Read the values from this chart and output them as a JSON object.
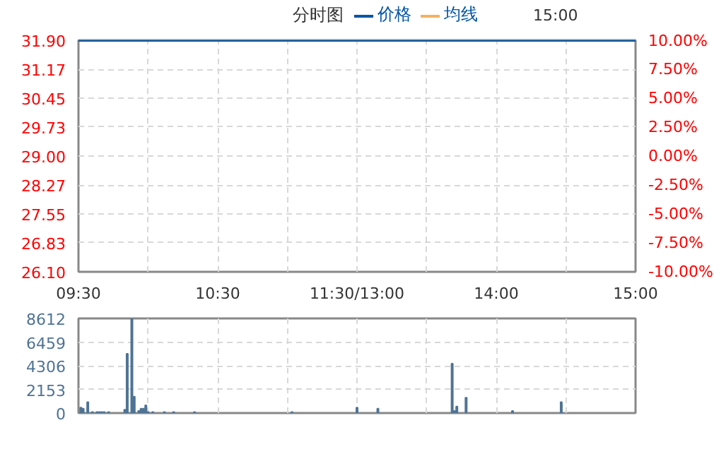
{
  "chart_data": [
    {
      "type": "line",
      "title": "分时图",
      "annotations": [
        "15:00"
      ],
      "legend": "top",
      "grid": true,
      "tick_labels": true,
      "categories": [
        "09:30",
        null,
        null,
        null,
        null,
        null,
        null,
        null,
        null,
        null,
        null,
        null,
        null,
        null,
        null,
        null,
        null,
        null,
        null,
        null,
        null,
        null,
        null,
        null,
        null,
        null,
        null,
        null,
        null,
        null,
        null,
        null,
        null,
        null,
        null,
        null,
        null,
        null,
        null,
        null,
        null,
        null,
        null,
        null,
        null,
        null,
        null,
        null,
        null,
        null,
        null,
        null,
        null,
        null,
        null,
        null,
        null,
        null,
        null,
        null,
        "10:30",
        null,
        null,
        null,
        null,
        null,
        null,
        null,
        null,
        null,
        null,
        null,
        null,
        null,
        null,
        null,
        null,
        null,
        null,
        null,
        null,
        null,
        null,
        null,
        null,
        null,
        null,
        null,
        null,
        null,
        null,
        null,
        null,
        null,
        null,
        null,
        null,
        null,
        null,
        null,
        null,
        null,
        null,
        null,
        null,
        null,
        null,
        null,
        null,
        null,
        null,
        null,
        null,
        null,
        null,
        null,
        null,
        null,
        null,
        null,
        "11:30/13:00",
        null,
        null,
        null,
        null,
        null,
        null,
        null,
        null,
        null,
        null,
        null,
        null,
        null,
        null,
        null,
        null,
        null,
        null,
        null,
        null,
        null,
        null,
        null,
        null,
        null,
        null,
        null,
        null,
        null,
        null,
        null,
        null,
        null,
        null,
        null,
        null,
        null,
        null,
        null,
        null,
        null,
        null,
        null,
        null,
        null,
        null,
        null,
        null,
        null,
        null,
        null,
        null,
        null,
        null,
        null,
        null,
        null,
        null,
        null,
        "14:00",
        null,
        null,
        null,
        null,
        null,
        null,
        null,
        null,
        null,
        null,
        null,
        null,
        null,
        null,
        null,
        null,
        null,
        null,
        null,
        null,
        null,
        null,
        null,
        null,
        null,
        null,
        null,
        null,
        null,
        null,
        null,
        null,
        null,
        null,
        null,
        null,
        null,
        null,
        null,
        null,
        null,
        null,
        null,
        null,
        null,
        null,
        null,
        null,
        null,
        null,
        null,
        null,
        null,
        null,
        null,
        null,
        null,
        null,
        null,
        "15:00"
      ],
      "ylim": [
        26.1,
        31.9
      ],
      "yticks": [
        {
          "value": 26.1,
          "label": "26.10"
        },
        26.83,
        27.55,
        28.27,
        {
          "value": 29,
          "label": "29.00"
        },
        29.73,
        30.45,
        31.17,
        {
          "value": 31.9,
          "label": "31.90"
        }
      ],
      "y2lim": [
        -10,
        10
      ],
      "y2ticks": [
        {
          "value": -10,
          "label": "-10.00%"
        },
        {
          "value": -7.5,
          "label": "-7.50%"
        },
        {
          "value": -5,
          "label": "-5.00%"
        },
        {
          "value": -2.5,
          "label": "-2.50%"
        },
        {
          "value": 0,
          "label": "0.00%"
        },
        {
          "value": 2.5,
          "label": "2.50%"
        },
        {
          "value": 5,
          "label": "5.00%"
        },
        {
          "value": 7.5,
          "label": "7.50%"
        },
        {
          "value": 10,
          "label": "10.00%"
        }
      ],
      "series": [
        {
          "name": "价格",
          "color": "#0055a5",
          "values": [
            31.9,
            31.9,
            31.9,
            31.9,
            31.9,
            31.9,
            31.9,
            31.9,
            31.9,
            31.9,
            31.9,
            31.9,
            31.9,
            31.9,
            31.9,
            31.9,
            31.9,
            31.9,
            31.9,
            31.9,
            31.9,
            31.9,
            31.9,
            31.9,
            31.9,
            31.9,
            31.9,
            31.9,
            31.9,
            31.9,
            31.9,
            31.9,
            31.9,
            31.9,
            31.9,
            31.9,
            31.9,
            31.9,
            31.9,
            31.9,
            31.9,
            31.9,
            31.9,
            31.9,
            31.9,
            31.9,
            31.9,
            31.9,
            31.9,
            31.9,
            31.9,
            31.9,
            31.9,
            31.9,
            31.9,
            31.9,
            31.9,
            31.9,
            31.9,
            31.9,
            31.9,
            31.9,
            31.9,
            31.9,
            31.9,
            31.9,
            31.9,
            31.9,
            31.9,
            31.9,
            31.9,
            31.9,
            31.9,
            31.9,
            31.9,
            31.9,
            31.9,
            31.9,
            31.9,
            31.9,
            31.9,
            31.9,
            31.9,
            31.9,
            31.9,
            31.9,
            31.9,
            31.9,
            31.9,
            31.9,
            31.9,
            31.9,
            31.9,
            31.9,
            31.9,
            31.9,
            31.9,
            31.9,
            31.9,
            31.9,
            31.9,
            31.9,
            31.9,
            31.9,
            31.9,
            31.9,
            31.9,
            31.9,
            31.9,
            31.9,
            31.9,
            31.9,
            31.9,
            31.9,
            31.9,
            31.9,
            31.9,
            31.9,
            31.9,
            31.9,
            31.9,
            31.9,
            31.9,
            31.9,
            31.9,
            31.9,
            31.9,
            31.9,
            31.9,
            31.9,
            31.9,
            31.9,
            31.9,
            31.9,
            31.9,
            31.9,
            31.9,
            31.9,
            31.9,
            31.9,
            31.9,
            31.9,
            31.9,
            31.9,
            31.9,
            31.9,
            31.9,
            31.9,
            31.9,
            31.9,
            31.9,
            31.9,
            31.9,
            31.9,
            31.9,
            31.9,
            31.9,
            31.9,
            31.9,
            31.9,
            31.9,
            31.9,
            31.9,
            31.9,
            31.9,
            31.9,
            31.9,
            31.9,
            31.9,
            31.9,
            31.9,
            31.9,
            31.9,
            31.9,
            31.9,
            31.9,
            31.9,
            31.9,
            31.9,
            31.9,
            31.9,
            31.9,
            31.9,
            31.9,
            31.9,
            31.9,
            31.9,
            31.9,
            31.9,
            31.9,
            31.9,
            31.9,
            31.9,
            31.9,
            31.9,
            31.9,
            31.9,
            31.9,
            31.9,
            31.9,
            31.9,
            31.9,
            31.9,
            31.9,
            31.9,
            31.9,
            31.9,
            31.9,
            31.9,
            31.9,
            31.9,
            31.9,
            31.9,
            31.9,
            31.9,
            31.9,
            31.9,
            31.9,
            31.9,
            31.9,
            31.9,
            31.9,
            31.9,
            31.9,
            31.9,
            31.9,
            31.9,
            31.9,
            31.9,
            31.9,
            31.9,
            31.9,
            31.9,
            31.9,
            31.9,
            31.9,
            31.9,
            31.9,
            31.9,
            31.9,
            31.9
          ]
        },
        {
          "name": "均线",
          "color": "#f5b060",
          "values": [
            null,
            null,
            null,
            null,
            null,
            null,
            null,
            null,
            null,
            null,
            null,
            null,
            null,
            null,
            null,
            null,
            null,
            null,
            null,
            null,
            null,
            null,
            null,
            null,
            null,
            null,
            null,
            null,
            null,
            null,
            null,
            null,
            null,
            null,
            null,
            null,
            null,
            null,
            null,
            null,
            null,
            null,
            null,
            null,
            null,
            null,
            null,
            null,
            null,
            null,
            null,
            null,
            null,
            null,
            null,
            null,
            null,
            null,
            null,
            null,
            null,
            null,
            null,
            null,
            null,
            null,
            null,
            null,
            null,
            null,
            null,
            null,
            null,
            null,
            null,
            null,
            null,
            null,
            null,
            null,
            null,
            null,
            null,
            null,
            null,
            null,
            null,
            null,
            null,
            null,
            null,
            null,
            null,
            null,
            null,
            null,
            null,
            null,
            null,
            null,
            null,
            null,
            null,
            null,
            null,
            null,
            null,
            null,
            null,
            null,
            null,
            null,
            null,
            null,
            null,
            null,
            null,
            null,
            null,
            null,
            null,
            null,
            null,
            null,
            null,
            null,
            null,
            null,
            null,
            null,
            null,
            null,
            null,
            null,
            null,
            null,
            null,
            null,
            null,
            null,
            null,
            null,
            null,
            null,
            null,
            null,
            null,
            null,
            null,
            null,
            null,
            null,
            null,
            null,
            null,
            null,
            null,
            null,
            null,
            null,
            null,
            null,
            null,
            null,
            null,
            null,
            null,
            null,
            null,
            null,
            null,
            null,
            null,
            null,
            null,
            null,
            null,
            null,
            null,
            null,
            null,
            null,
            null,
            null,
            null,
            null,
            null,
            null,
            null,
            null,
            null,
            null,
            null,
            null,
            null,
            null,
            null,
            null,
            null,
            null,
            null,
            null,
            null,
            null,
            null,
            null,
            null,
            null,
            null,
            null,
            null,
            null,
            null,
            null,
            null,
            null,
            null,
            null,
            null,
            null,
            null,
            null,
            null,
            null,
            null,
            null,
            null,
            null,
            null,
            null,
            null,
            null,
            null,
            null,
            null,
            null,
            null,
            null,
            null,
            null,
            null
          ]
        }
      ]
    },
    {
      "type": "bar",
      "color": "#4f7394",
      "grid": true,
      "tick_labels": "y",
      "categories": [
        null,
        null,
        null,
        null,
        null,
        null,
        null,
        null,
        null,
        null,
        null,
        null,
        null,
        null,
        null,
        null,
        null,
        null,
        null,
        null,
        null,
        null,
        null,
        null,
        null,
        null,
        null,
        null,
        null,
        null,
        null,
        null,
        null,
        null,
        null,
        null,
        null,
        null,
        null,
        null,
        null,
        null,
        null,
        null,
        null,
        null,
        null,
        null,
        null,
        null,
        null,
        null,
        null,
        null,
        null,
        null,
        null,
        null,
        null,
        null,
        null,
        null,
        null,
        null,
        null,
        null,
        null,
        null,
        null,
        null,
        null,
        null,
        null,
        null,
        null,
        null,
        null,
        null,
        null,
        null,
        null,
        null,
        null,
        null,
        null,
        null,
        null,
        null,
        null,
        null,
        null,
        null,
        null,
        null,
        null,
        null,
        null,
        null,
        null,
        null,
        null,
        null,
        null,
        null,
        null,
        null,
        null,
        null,
        null,
        null,
        null,
        null,
        null,
        null,
        null,
        null,
        null,
        null,
        null,
        null,
        null,
        null,
        null,
        null,
        null,
        null,
        null,
        null,
        null,
        null,
        null,
        null,
        null,
        null,
        null,
        null,
        null,
        null,
        null,
        null,
        null,
        null,
        null,
        null,
        null,
        null,
        null,
        null,
        null,
        null,
        null,
        null,
        null,
        null,
        null,
        null,
        null,
        null,
        null,
        null,
        null,
        null,
        null,
        null,
        null,
        null,
        null,
        null,
        null,
        null,
        null,
        null,
        null,
        null,
        null,
        null,
        null,
        null,
        null,
        null,
        null,
        null,
        null,
        null,
        null,
        null,
        null,
        null,
        null,
        null,
        null,
        null,
        null,
        null,
        null,
        null,
        null,
        null,
        null,
        null,
        null,
        null,
        null,
        null,
        null,
        null,
        null,
        null,
        null,
        null,
        null,
        null,
        null,
        null,
        null,
        null,
        null,
        null,
        null,
        null,
        null,
        null,
        null,
        null,
        null,
        null,
        null,
        null,
        null,
        null,
        null,
        null,
        null,
        null,
        null,
        null,
        null,
        null,
        null,
        null,
        null
      ],
      "ylim": [
        0,
        8612
      ],
      "yticks": [
        0,
        2153,
        4306,
        6459,
        8612
      ],
      "values": [
        null,
        500,
        400,
        null,
        1000,
        null,
        100,
        null,
        100,
        100,
        100,
        100,
        null,
        100,
        null,
        null,
        null,
        null,
        null,
        null,
        300,
        5400,
        null,
        8612,
        1500,
        null,
        200,
        400,
        400,
        700,
        100,
        null,
        100,
        null,
        null,
        null,
        null,
        100,
        null,
        null,
        null,
        100,
        null,
        null,
        null,
        null,
        null,
        null,
        null,
        null,
        100,
        null,
        null,
        null,
        null,
        null,
        null,
        null,
        null,
        null,
        null,
        null,
        null,
        null,
        null,
        null,
        null,
        null,
        null,
        null,
        null,
        null,
        null,
        null,
        null,
        null,
        null,
        null,
        null,
        null,
        null,
        null,
        null,
        null,
        null,
        null,
        null,
        null,
        null,
        null,
        null,
        null,
        100,
        null,
        null,
        null,
        null,
        null,
        null,
        null,
        null,
        null,
        null,
        null,
        null,
        null,
        null,
        null,
        null,
        null,
        null,
        null,
        null,
        null,
        null,
        null,
        null,
        null,
        null,
        null,
        500,
        null,
        null,
        null,
        null,
        null,
        null,
        null,
        null,
        400,
        null,
        null,
        null,
        null,
        null,
        null,
        null,
        null,
        null,
        null,
        null,
        null,
        null,
        null,
        null,
        null,
        null,
        null,
        null,
        null,
        null,
        null,
        null,
        null,
        null,
        null,
        null,
        null,
        null,
        null,
        null,
        4500,
        200,
        600,
        null,
        null,
        null,
        1400,
        null,
        null,
        null,
        null,
        null,
        null,
        null,
        null,
        null,
        null,
        null,
        null,
        null,
        null,
        null,
        null,
        null,
        null,
        null,
        200,
        null,
        null,
        null,
        null,
        null,
        null,
        null,
        null,
        null,
        null,
        null,
        null,
        null,
        null,
        null,
        null,
        null,
        null,
        null,
        null,
        1000,
        null,
        null,
        null,
        null,
        null,
        null,
        null,
        null,
        null,
        null,
        null,
        null,
        null,
        null,
        null,
        null,
        null,
        null,
        null,
        null,
        null,
        null,
        null,
        null,
        null,
        null,
        null,
        null,
        null,
        null,
        null,
        null
      ]
    }
  ]
}
